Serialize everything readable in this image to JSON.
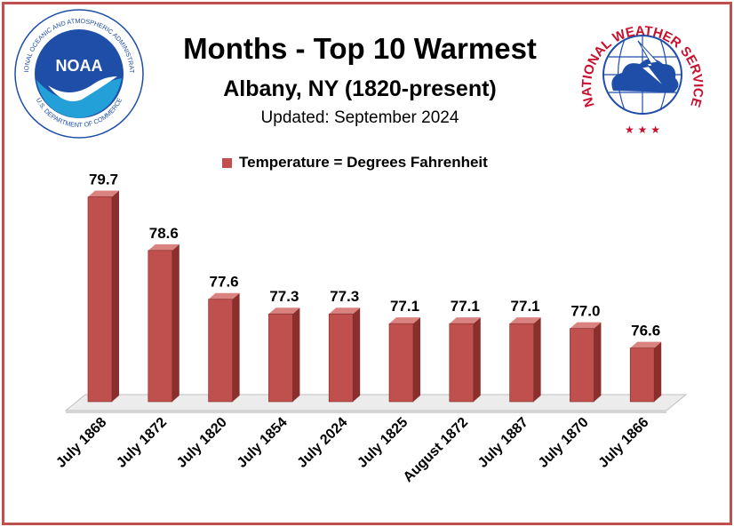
{
  "header": {
    "title": "Months - Top 10 Warmest",
    "subtitle": "Albany, NY (1820-present)",
    "updated": "Updated: September 2024"
  },
  "logos": {
    "noaa_text": "NOAA",
    "noaa_ring_top": "NATIONAL OCEANIC AND ATMOSPHERIC ADMINISTRATION",
    "noaa_ring_bottom": "U.S. DEPARTMENT OF COMMERCE",
    "nws_ring": "NATIONAL WEATHER SERVICE"
  },
  "colors": {
    "bar_front": "#c0504d",
    "bar_side": "#8b2f2d",
    "bar_top": "#d9827f",
    "frame": "#c0504d",
    "noaa_blue": "#1f4ea8",
    "nws_red": "#c8102e"
  },
  "chart_data": {
    "type": "bar",
    "categories": [
      "July 1868",
      "July 1872",
      "July 1820",
      "July 1854",
      "July 2024",
      "July 1825",
      "August 1872",
      "July 1887",
      "July 1870",
      "July 1866"
    ],
    "series": [
      {
        "name": "Temperature = Degrees Fahrenheit",
        "values": [
          79.7,
          78.6,
          77.6,
          77.3,
          77.3,
          77.1,
          77.1,
          77.1,
          77.0,
          76.6
        ]
      }
    ],
    "data_labels": [
      "79.7",
      "78.6",
      "77.6",
      "77.3",
      "77.3",
      "77.1",
      "77.1",
      "77.1",
      "77.0",
      "76.6"
    ],
    "ylim": [
      75.5,
      80
    ],
    "legend": "top",
    "grid": false,
    "style": "3d-column"
  }
}
